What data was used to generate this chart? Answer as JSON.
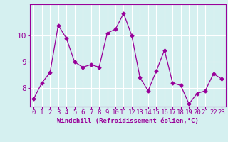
{
  "x": [
    0,
    1,
    2,
    3,
    4,
    5,
    6,
    7,
    8,
    9,
    10,
    11,
    12,
    13,
    14,
    15,
    16,
    17,
    18,
    19,
    20,
    21,
    22,
    23
  ],
  "y": [
    7.6,
    8.2,
    8.6,
    10.4,
    9.9,
    9.0,
    8.8,
    8.9,
    8.8,
    10.1,
    10.25,
    10.85,
    10.0,
    8.4,
    7.9,
    8.65,
    9.45,
    8.2,
    8.1,
    7.4,
    7.8,
    7.9,
    8.55,
    8.35
  ],
  "xlabel": "Windchill (Refroidissement éolien,°C)",
  "xticks": [
    0,
    1,
    2,
    3,
    4,
    5,
    6,
    7,
    8,
    9,
    10,
    11,
    12,
    13,
    14,
    15,
    16,
    17,
    18,
    19,
    20,
    21,
    22,
    23
  ],
  "yticks": [
    8,
    9,
    10
  ],
  "ylim": [
    7.3,
    11.2
  ],
  "xlim": [
    -0.5,
    23.5
  ],
  "line_color": "#990099",
  "marker": "D",
  "marker_size": 2.5,
  "bg_color": "#d5f0f0",
  "grid_color": "#ffffff",
  "tick_label_color": "#990099",
  "xlabel_color": "#990099",
  "xlabel_fontsize": 6.5,
  "tick_fontsize": 6.5,
  "ytick_fontsize": 8
}
